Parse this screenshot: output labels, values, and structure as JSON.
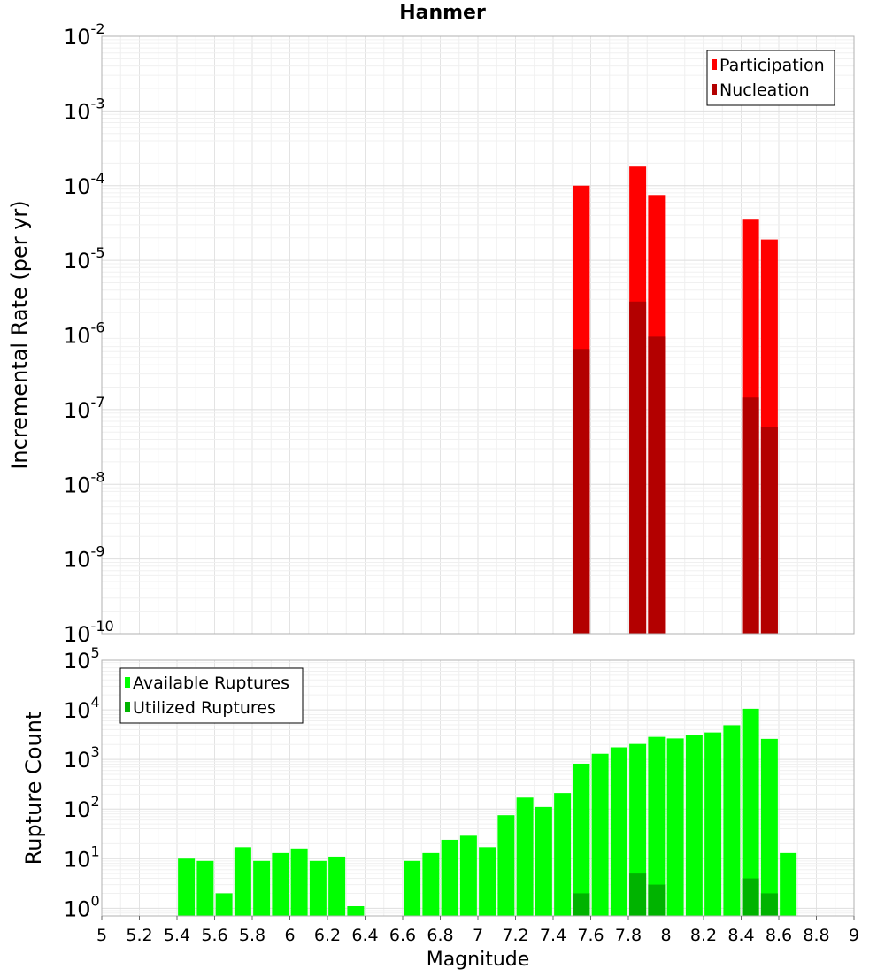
{
  "chart_data": [
    {
      "type": "bar",
      "title": "Hanmer",
      "xlabel": "",
      "ylabel": "Incremental Rate (per yr)",
      "yscale": "log",
      "ylim": [
        1e-10,
        0.01
      ],
      "xlim": [
        5,
        9
      ],
      "grid": true,
      "legend_position": "top-right",
      "y_tick_labels": [
        {
          "base": "10",
          "exp": "-10"
        },
        {
          "base": "10",
          "exp": "-9"
        },
        {
          "base": "10",
          "exp": "-8"
        },
        {
          "base": "10",
          "exp": "-7"
        },
        {
          "base": "10",
          "exp": "-6"
        },
        {
          "base": "10",
          "exp": "-5"
        },
        {
          "base": "10",
          "exp": "-4"
        },
        {
          "base": "10",
          "exp": "-3"
        },
        {
          "base": "10",
          "exp": "-2"
        }
      ],
      "series": [
        {
          "name": "Participation",
          "color": "#ff0000",
          "points": [
            [
              7.55,
              0.0001
            ],
            [
              7.85,
              0.00018
            ],
            [
              7.95,
              7.5e-05
            ],
            [
              8.45,
              3.5e-05
            ],
            [
              8.55,
              1.9e-05
            ]
          ]
        },
        {
          "name": "Nucleation",
          "color": "#b30000",
          "points": [
            [
              7.55,
              6.5e-07
            ],
            [
              7.85,
              2.8e-06
            ],
            [
              7.95,
              9.5e-07
            ],
            [
              8.45,
              1.45e-07
            ],
            [
              8.55,
              5.8e-08
            ]
          ]
        }
      ]
    },
    {
      "type": "bar",
      "title": "",
      "xlabel": "Magnitude",
      "ylabel": "Rupture Count",
      "yscale": "log",
      "ylim": [
        0.7,
        100000
      ],
      "xlim": [
        5,
        9
      ],
      "grid": true,
      "legend_position": "top-left",
      "x_ticks": [
        "5",
        "5.2",
        "5.4",
        "5.6",
        "5.8",
        "6",
        "6.2",
        "6.4",
        "6.6",
        "6.8",
        "7",
        "7.2",
        "7.4",
        "7.6",
        "7.8",
        "8",
        "8.2",
        "8.4",
        "8.6",
        "8.8",
        "9"
      ],
      "y_tick_labels": [
        {
          "base": "10",
          "exp": "0"
        },
        {
          "base": "10",
          "exp": "1"
        },
        {
          "base": "10",
          "exp": "2"
        },
        {
          "base": "10",
          "exp": "3"
        },
        {
          "base": "10",
          "exp": "4"
        },
        {
          "base": "10",
          "exp": "5"
        }
      ],
      "series": [
        {
          "name": "Available Ruptures",
          "color": "#00ff00",
          "points": [
            [
              5.45,
              10
            ],
            [
              5.55,
              9
            ],
            [
              5.65,
              2
            ],
            [
              5.75,
              17
            ],
            [
              5.85,
              9
            ],
            [
              5.95,
              13
            ],
            [
              6.05,
              16
            ],
            [
              6.15,
              9
            ],
            [
              6.25,
              11
            ],
            [
              6.35,
              1.1
            ],
            [
              6.65,
              9
            ],
            [
              6.75,
              13
            ],
            [
              6.85,
              24
            ],
            [
              6.95,
              29
            ],
            [
              7.05,
              17
            ],
            [
              7.15,
              75
            ],
            [
              7.25,
              170
            ],
            [
              7.35,
              110
            ],
            [
              7.45,
              210
            ],
            [
              7.55,
              820
            ],
            [
              7.65,
              1300
            ],
            [
              7.75,
              1750
            ],
            [
              7.85,
              2050
            ],
            [
              7.95,
              2850
            ],
            [
              8.05,
              2650
            ],
            [
              8.15,
              3150
            ],
            [
              8.25,
              3500
            ],
            [
              8.35,
              4900
            ],
            [
              8.45,
              10500
            ],
            [
              8.55,
              2600
            ],
            [
              8.65,
              13
            ]
          ]
        },
        {
          "name": "Utilized Ruptures",
          "color": "#00b300",
          "points": [
            [
              7.55,
              2
            ],
            [
              7.85,
              5
            ],
            [
              7.95,
              3
            ],
            [
              8.45,
              4
            ],
            [
              8.55,
              2
            ]
          ]
        }
      ]
    }
  ]
}
